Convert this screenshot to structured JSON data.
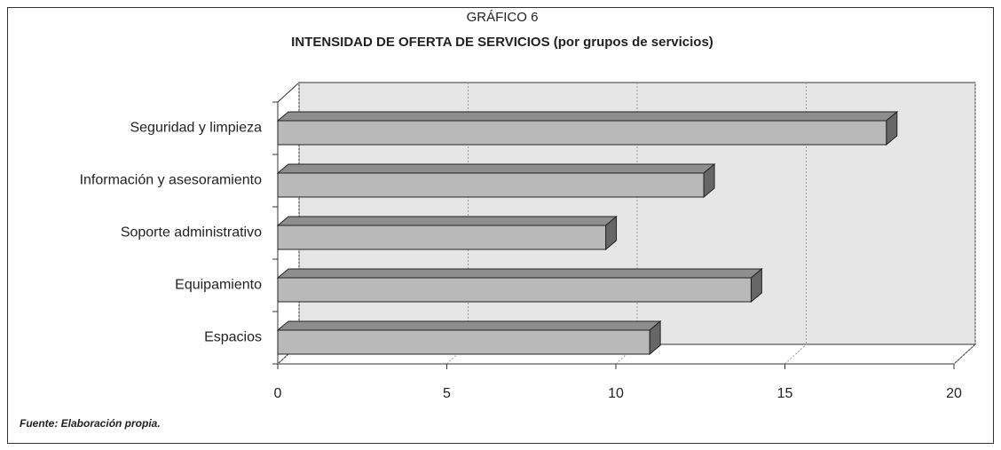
{
  "chart_data": {
    "type": "bar3d_horizontal",
    "title": "GRÁFICO 6",
    "subtitle": "INTENSIDAD DE OFERTA DE SERVICIOS (por grupos de servicios)",
    "categories": [
      "Seguridad y limpieza",
      "Información y asesoramiento",
      "Soporte administrativo",
      "Equipamiento",
      "Espacios"
    ],
    "values": [
      18,
      12.6,
      9.7,
      14,
      11
    ],
    "color": "#b9b9b9",
    "xlim": [
      0,
      20
    ],
    "xticks": [
      0,
      5,
      10,
      15,
      20
    ],
    "grid": true,
    "source": "Fuente: Elaboración propia."
  }
}
